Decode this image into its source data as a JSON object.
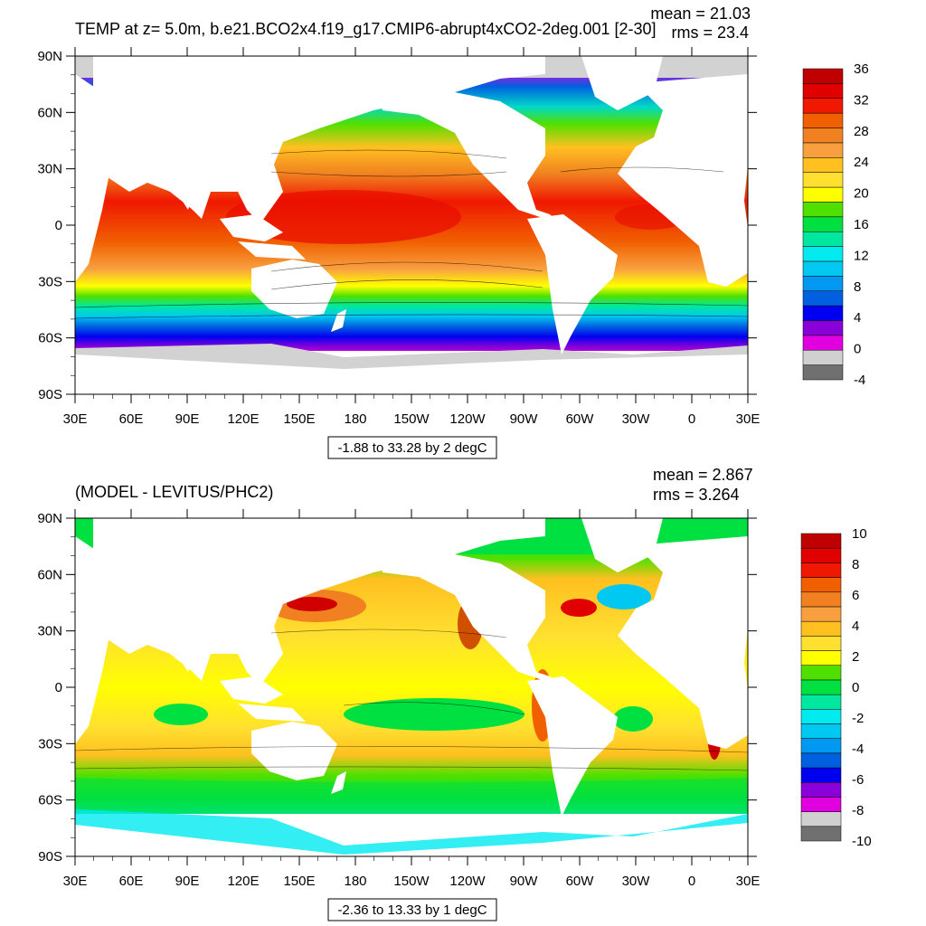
{
  "chart_data": [
    {
      "type": "heatmap",
      "title": "TEMP at z=   5.0m, b.e21.BCO2x4.f19_g17.CMIP6-abrupt4xCO2-2deg.001 [2-30]",
      "stat_mean": "mean = 21.03",
      "stat_rms": "rms = 23.4",
      "range_label": "-1.88 to 33.28 by 2 degC",
      "x_ticks": [
        "30E",
        "60E",
        "90E",
        "120E",
        "150E",
        "180",
        "150W",
        "120W",
        "90W",
        "60W",
        "30W",
        "0",
        "30E"
      ],
      "y_ticks": [
        "90N",
        "60N",
        "30N",
        "0",
        "30S",
        "60S",
        "90S"
      ],
      "colorbar_labels": [
        "36",
        "32",
        "28",
        "24",
        "20",
        "16",
        "12",
        "8",
        "4",
        "0",
        "-4"
      ],
      "colors": [
        "#707070",
        "#d0d0d0",
        "#e000e0",
        "#8a00d8",
        "#0000f0",
        "#0060e0",
        "#0098f0",
        "#00c8f0",
        "#00eaf0",
        "#00e8a0",
        "#00e040",
        "#50e000",
        "#ffff00",
        "#ffe030",
        "#ffc020",
        "#f8a040",
        "#f08020",
        "#f06000",
        "#f01800",
        "#e00000",
        "#c00000"
      ],
      "land_color": "#ffffff",
      "ice_color": "#d2d2d2"
    },
    {
      "type": "heatmap",
      "title": "(MODEL - LEVITUS/PHC2)",
      "stat_mean": "mean = 2.867",
      "stat_rms": "rms = 3.264",
      "range_label": "-2.36 to 13.33 by 1 degC",
      "x_ticks": [
        "30E",
        "60E",
        "90E",
        "120E",
        "150E",
        "180",
        "150W",
        "120W",
        "90W",
        "60W",
        "30W",
        "0",
        "30E"
      ],
      "y_ticks": [
        "90N",
        "60N",
        "30N",
        "0",
        "30S",
        "60S",
        "90S"
      ],
      "colorbar_labels": [
        "10",
        "8",
        "6",
        "4",
        "2",
        "0",
        "-2",
        "-4",
        "-6",
        "-8",
        "-10"
      ],
      "colors": [
        "#707070",
        "#d0d0d0",
        "#e000e0",
        "#8a00d8",
        "#0000f0",
        "#0060e0",
        "#0098f0",
        "#00c8f0",
        "#00eaf0",
        "#00e8a0",
        "#00e040",
        "#50e000",
        "#ffff00",
        "#ffe030",
        "#ffc020",
        "#f8a040",
        "#f08020",
        "#f06000",
        "#f01800",
        "#e00000",
        "#c00000"
      ],
      "land_color": "#ffffff"
    }
  ]
}
